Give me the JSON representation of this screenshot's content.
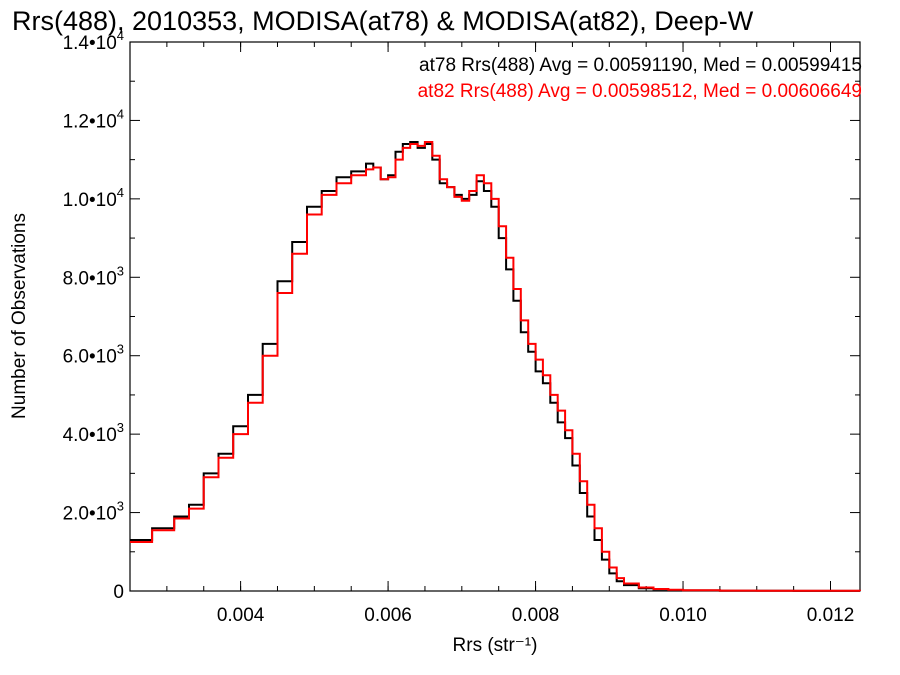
{
  "chart_data": {
    "type": "line",
    "title": "Rrs(488), 2010353, MODISA(at78) & MODISA(at82), Deep-W",
    "xlabel": "Rrs (str⁻¹)",
    "ylabel": "Number of Observations",
    "xlim": [
      0.0025,
      0.0124
    ],
    "ylim": [
      0,
      14000
    ],
    "x_ticks": [
      {
        "value": 0.004,
        "label": "0.004"
      },
      {
        "value": 0.006,
        "label": "0.006"
      },
      {
        "value": 0.008,
        "label": "0.008"
      },
      {
        "value": 0.01,
        "label": "0.010"
      },
      {
        "value": 0.012,
        "label": "0.012"
      }
    ],
    "y_ticks": [
      {
        "value": 0,
        "mantissa": "0",
        "exp": ""
      },
      {
        "value": 2000,
        "mantissa": "2.0•10",
        "exp": "3"
      },
      {
        "value": 4000,
        "mantissa": "4.0•10",
        "exp": "3"
      },
      {
        "value": 6000,
        "mantissa": "6.0•10",
        "exp": "3"
      },
      {
        "value": 8000,
        "mantissa": "8.0•10",
        "exp": "3"
      },
      {
        "value": 10000,
        "mantissa": "1.0•10",
        "exp": "4"
      },
      {
        "value": 12000,
        "mantissa": "1.2•10",
        "exp": "4"
      },
      {
        "value": 14000,
        "mantissa": "1.4•10",
        "exp": "4"
      }
    ],
    "annotations": [
      {
        "text": "at78 Rrs(488) Avg = 0.00591190, Med = 0.00599415",
        "color": "#000000"
      },
      {
        "text": "at82 Rrs(488) Avg = 0.00598512, Med = 0.00606649",
        "color": "#ff0000"
      }
    ],
    "series": [
      {
        "color": "#000000",
        "x": [
          0.0025,
          0.0028,
          0.0031,
          0.0033,
          0.0035,
          0.0037,
          0.0039,
          0.0041,
          0.0043,
          0.0045,
          0.0047,
          0.0049,
          0.0051,
          0.0053,
          0.0055,
          0.0057,
          0.0058,
          0.0059,
          0.006,
          0.0061,
          0.0062,
          0.0063,
          0.0064,
          0.0065,
          0.0066,
          0.0067,
          0.0068,
          0.0069,
          0.007,
          0.0071,
          0.0072,
          0.0073,
          0.0074,
          0.0075,
          0.0076,
          0.0077,
          0.0078,
          0.0079,
          0.008,
          0.0081,
          0.0082,
          0.0083,
          0.0084,
          0.0085,
          0.0086,
          0.0087,
          0.0088,
          0.0089,
          0.009,
          0.0091,
          0.0092,
          0.0094,
          0.0096,
          0.0098,
          0.01,
          0.0105,
          0.011,
          0.0115,
          0.0124
        ],
        "y": [
          1300,
          1600,
          1900,
          2200,
          3000,
          3500,
          4200,
          5000,
          6300,
          7900,
          8900,
          9800,
          10200,
          10550,
          10700,
          10900,
          10800,
          10500,
          10600,
          11200,
          11400,
          11450,
          11300,
          11400,
          11000,
          10400,
          10300,
          10100,
          10000,
          10100,
          10450,
          10200,
          9800,
          9000,
          8200,
          7400,
          6600,
          6100,
          5600,
          5300,
          4800,
          4300,
          3900,
          3200,
          2500,
          1900,
          1300,
          800,
          450,
          250,
          150,
          70,
          40,
          25,
          15,
          8,
          5,
          3,
          2
        ]
      },
      {
        "color": "#ff0000",
        "x": [
          0.0025,
          0.0028,
          0.0031,
          0.0033,
          0.0035,
          0.0037,
          0.0039,
          0.0041,
          0.0043,
          0.0045,
          0.0047,
          0.0049,
          0.0051,
          0.0053,
          0.0055,
          0.0057,
          0.0058,
          0.0059,
          0.006,
          0.0061,
          0.0062,
          0.0063,
          0.0064,
          0.0065,
          0.0066,
          0.0067,
          0.0068,
          0.0069,
          0.007,
          0.0071,
          0.0072,
          0.0073,
          0.0074,
          0.0075,
          0.0076,
          0.0077,
          0.0078,
          0.0079,
          0.008,
          0.0081,
          0.0082,
          0.0083,
          0.0084,
          0.0085,
          0.0086,
          0.0087,
          0.0088,
          0.0089,
          0.009,
          0.0091,
          0.0092,
          0.0094,
          0.0096,
          0.0098,
          0.01,
          0.0105,
          0.011,
          0.0115,
          0.0124
        ],
        "y": [
          1250,
          1550,
          1850,
          2100,
          2900,
          3400,
          4000,
          4800,
          6000,
          7600,
          8600,
          9600,
          10100,
          10400,
          10600,
          10750,
          10800,
          10500,
          10550,
          11000,
          11300,
          11400,
          11350,
          11450,
          11100,
          10500,
          10300,
          10050,
          9950,
          10200,
          10600,
          10400,
          10000,
          9300,
          8500,
          7700,
          6900,
          6300,
          5900,
          5500,
          5000,
          4600,
          4100,
          3500,
          2800,
          2200,
          1600,
          1000,
          600,
          330,
          190,
          90,
          50,
          30,
          18,
          10,
          6,
          4,
          2
        ]
      }
    ]
  }
}
